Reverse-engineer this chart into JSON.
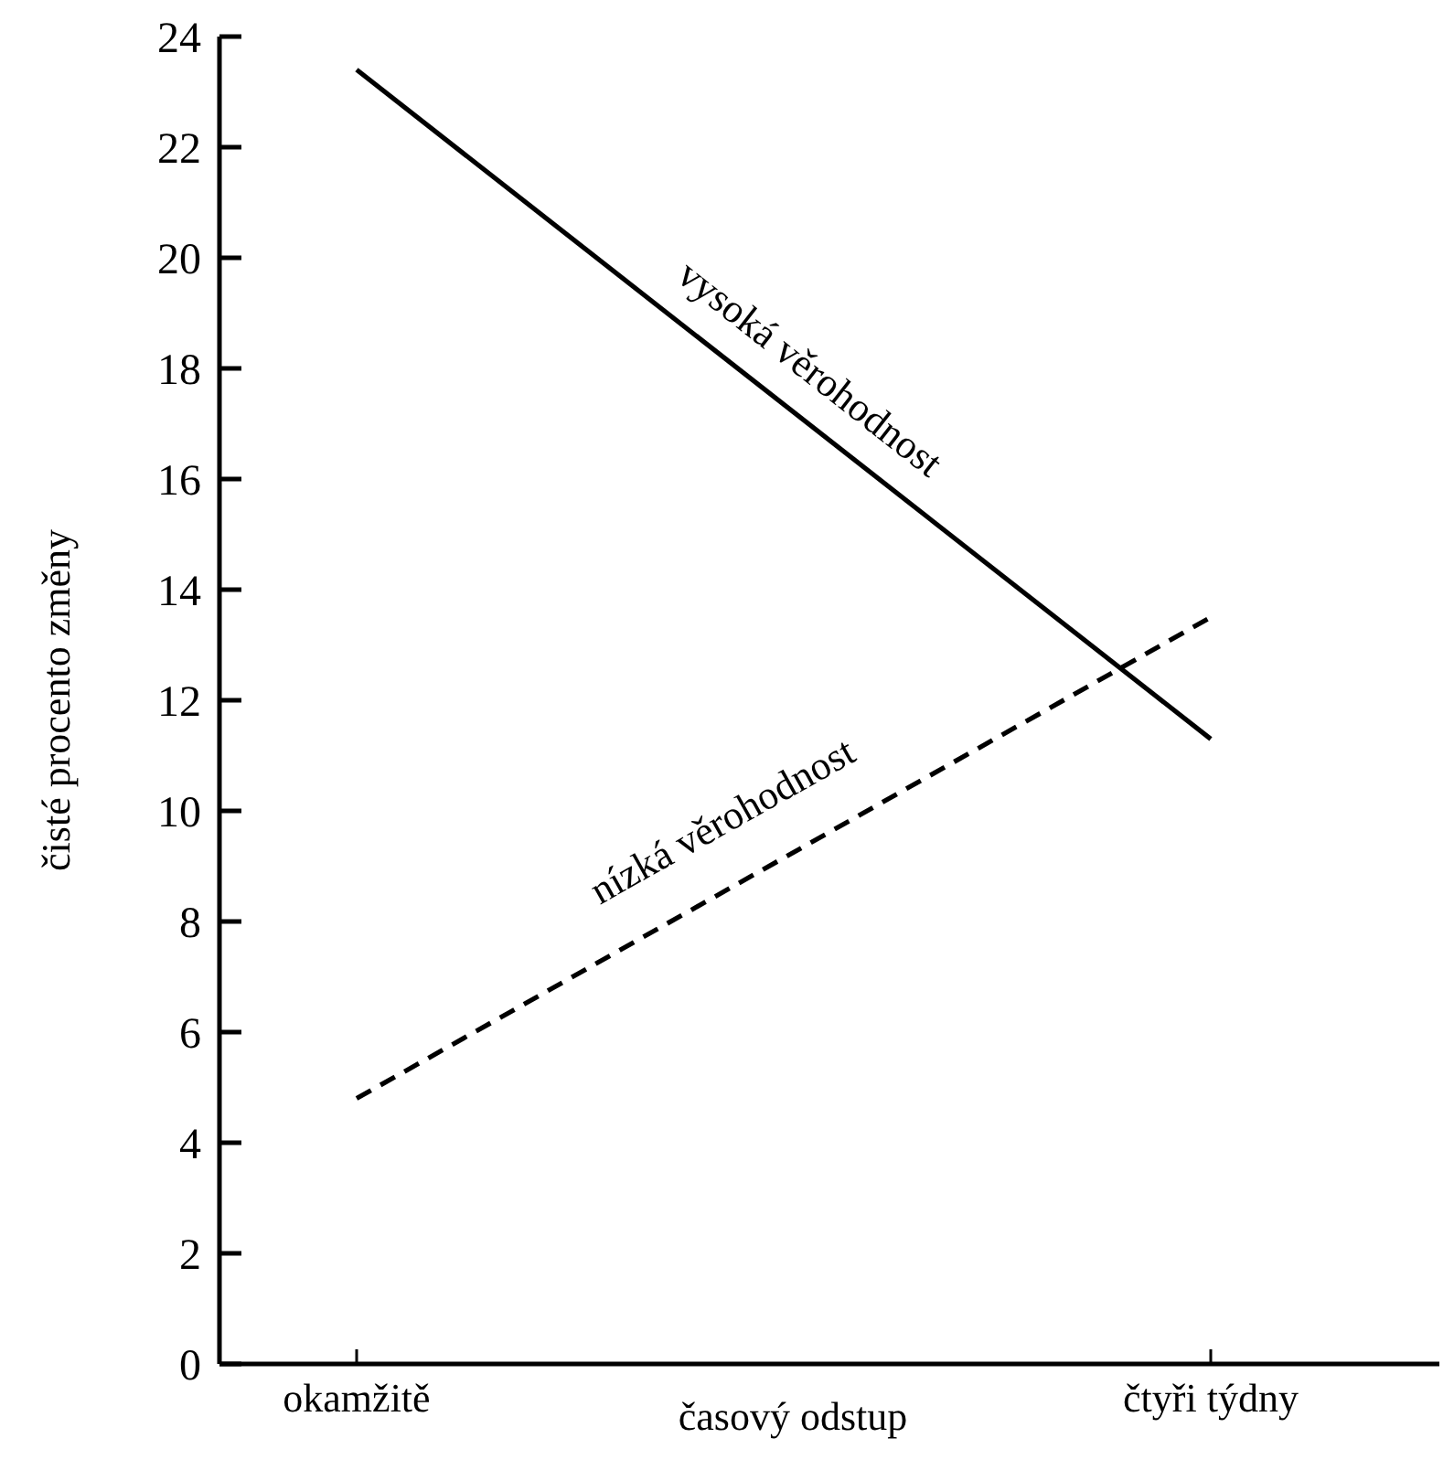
{
  "chart_data": {
    "type": "line",
    "xlabel": "časový odstup",
    "ylabel": "čisté procento změny",
    "categories": [
      "okamžitě",
      "čtyři týdny"
    ],
    "ylim": [
      0,
      24
    ],
    "yticks": [
      0,
      2,
      4,
      6,
      8,
      10,
      12,
      14,
      16,
      18,
      20,
      22,
      24
    ],
    "grid": false,
    "marker": "none",
    "series": [
      {
        "name": "vysoká věrohodnost",
        "color": "#000000",
        "line_style": "solid",
        "values": [
          23.4,
          11.3
        ]
      },
      {
        "name": "nízká věrohodnost",
        "color": "#000000",
        "line_style": "dashed",
        "values": [
          4.8,
          13.5
        ]
      }
    ]
  }
}
